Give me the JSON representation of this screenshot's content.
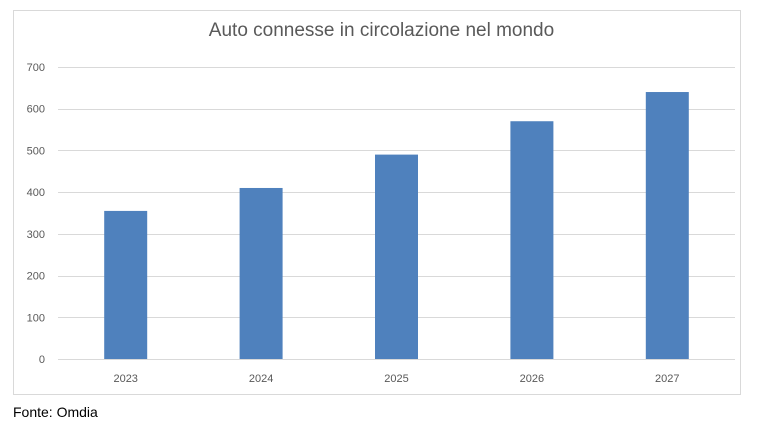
{
  "chart_data": {
    "type": "bar",
    "title": "Auto connesse in circolazione nel mondo",
    "categories": [
      "2023",
      "2024",
      "2025",
      "2026",
      "2027"
    ],
    "values": [
      355,
      410,
      490,
      570,
      640
    ],
    "ylim": [
      0,
      700
    ],
    "yticks": [
      0,
      100,
      200,
      300,
      400,
      500,
      600,
      700
    ],
    "xlabel": "",
    "ylabel": "",
    "grid": true,
    "legend": "none",
    "bar_color": "#4f81bd",
    "grid_color": "#d9d9d9"
  },
  "source": "Fonte: Omdia"
}
